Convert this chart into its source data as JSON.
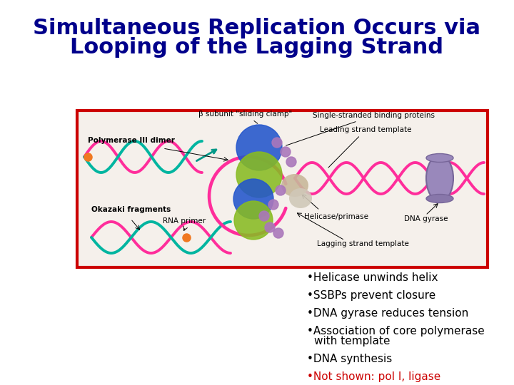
{
  "title_line1": "Simultaneous Replication Occurs via",
  "title_line2": "Looping of the Lagging Strand",
  "title_color": "#00008B",
  "title_fontsize": 22,
  "title_fontweight": "bold",
  "bg_color": "#ffffff",
  "img_border_color": "#cc0000",
  "img_border_lw": 3,
  "bullets": [
    {
      "text": "•Helicase unwinds helix",
      "color": "#000000",
      "fontsize": 11
    },
    {
      "text": "•SSBPs prevent closure",
      "color": "#000000",
      "fontsize": 11
    },
    {
      "text": "•DNA gyrase reduces tension",
      "color": "#000000",
      "fontsize": 11
    },
    {
      "text": "•Association of core polymerase\n  with template",
      "color": "#000000",
      "fontsize": 11
    },
    {
      "text": "•DNA synthesis",
      "color": "#000000",
      "fontsize": 11
    },
    {
      "text": "•Not shown: pol I, ligase",
      "color": "#cc0000",
      "fontsize": 11
    }
  ],
  "pink": "#ff2d9b",
  "teal": "#00b5a0",
  "orange": "#f07820",
  "blue": "#2255cc",
  "ygreen": "#88bb22",
  "purple": "#aa77bb",
  "gray": "#9988aa",
  "beige": "#c8b89a",
  "cyan_arrow": "#009988"
}
